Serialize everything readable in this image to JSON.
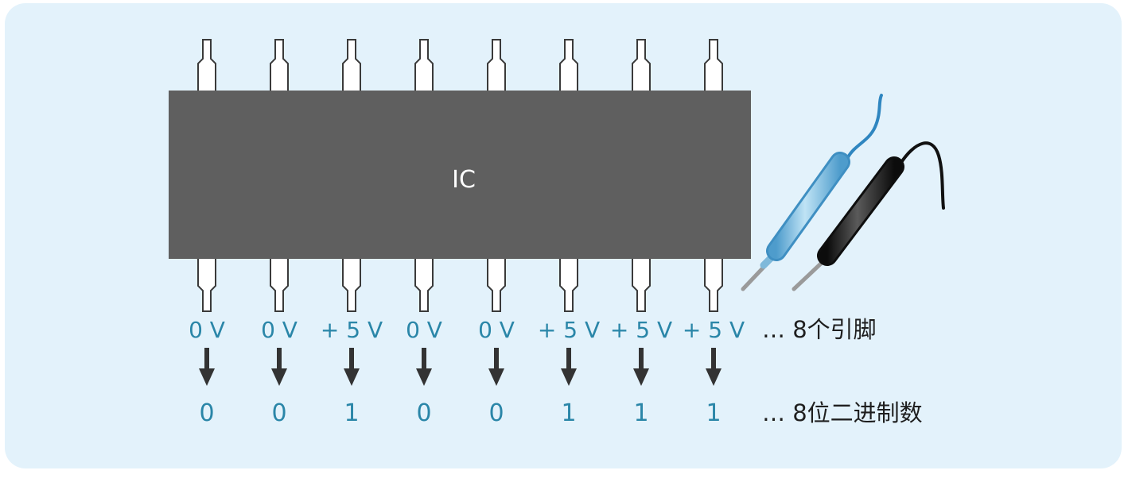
{
  "chip": {
    "label": "IC",
    "body_color": "#5f5f5f"
  },
  "pins": [
    {
      "voltage": "0 V",
      "bit": "0"
    },
    {
      "voltage": "0 V",
      "bit": "0"
    },
    {
      "voltage": "+ 5 V",
      "bit": "1"
    },
    {
      "voltage": "0 V",
      "bit": "0"
    },
    {
      "voltage": "0 V",
      "bit": "0"
    },
    {
      "voltage": "+ 5 V",
      "bit": "1"
    },
    {
      "voltage": "+ 5 V",
      "bit": "1"
    },
    {
      "voltage": "+ 5 V",
      "bit": "1"
    }
  ],
  "annotations": {
    "pins_note": "… 8个引脚",
    "bits_note": "… 8位二进制数"
  },
  "colors": {
    "background": "#e3f2fb",
    "text_accent": "#2a86a8",
    "probe_blue": "#6fb6dc",
    "probe_black": "#1a1a1a",
    "probe_blue_wire": "#2f86c0"
  },
  "icons": {
    "arrow": "down-arrow-icon",
    "probe_positive": "blue-probe-icon",
    "probe_negative": "black-probe-icon"
  }
}
